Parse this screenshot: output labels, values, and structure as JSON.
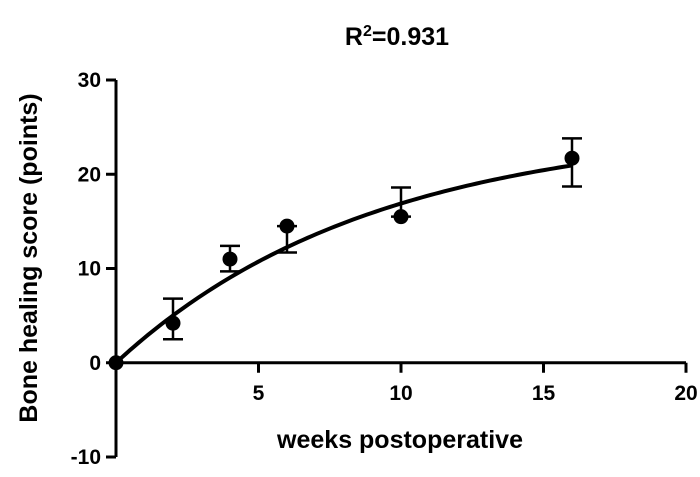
{
  "chart_data": {
    "type": "scatter",
    "title_base": "R",
    "title_sup": "2",
    "title_rest": "=0.931",
    "xlabel": "weeks postoperative",
    "ylabel": "Bone healing score (points)",
    "xlim": [
      0,
      20
    ],
    "ylim": [
      -10,
      30
    ],
    "x_ticks": [
      5,
      10,
      15,
      20
    ],
    "y_ticks": [
      30,
      20,
      10,
      0,
      -10
    ],
    "grid": false,
    "points": [
      {
        "x": 0,
        "y": 0,
        "err_low": 0,
        "err_high": 0
      },
      {
        "x": 2,
        "y": 4.2,
        "err_low": 2.5,
        "err_high": 6.8
      },
      {
        "x": 4,
        "y": 11.0,
        "err_low": 9.7,
        "err_high": 12.4
      },
      {
        "x": 6,
        "y": 14.5,
        "err_low": 11.7,
        "err_high": 14.5
      },
      {
        "x": 10,
        "y": 15.5,
        "err_low": 15.5,
        "err_high": 18.6
      },
      {
        "x": 16,
        "y": 21.7,
        "err_low": 18.7,
        "err_high": 23.8
      }
    ],
    "fit_curve": {
      "model": "one-phase association",
      "plateau": 25.2,
      "k": 0.111
    }
  }
}
